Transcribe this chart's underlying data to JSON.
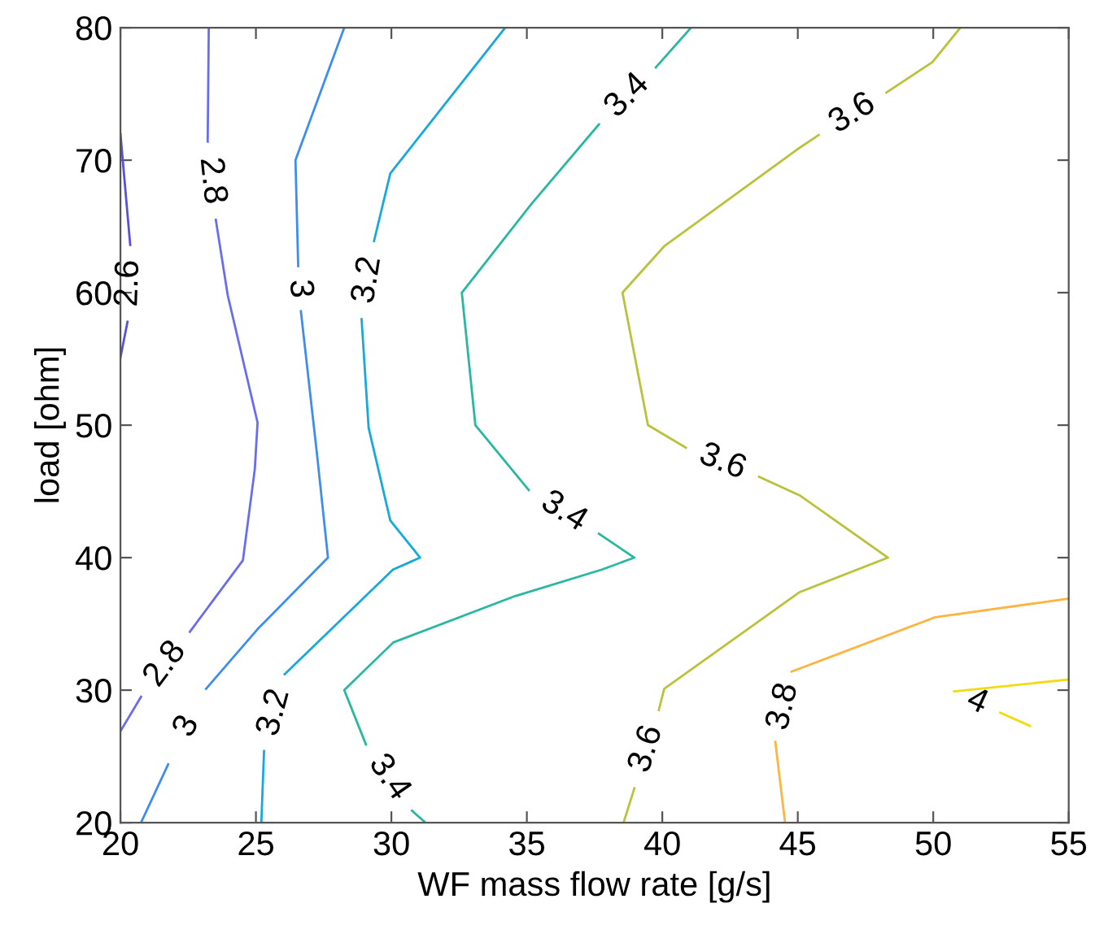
{
  "chart_data": {
    "type": "line",
    "xlabel": "WF mass flow rate [g/s]",
    "ylabel": "load [ohm]",
    "xlim": [
      20,
      55
    ],
    "xticks": [
      20,
      25,
      30,
      35,
      40,
      45,
      50,
      55
    ],
    "ylim": [
      20,
      80
    ],
    "yticks": [
      20,
      30,
      40,
      50,
      60,
      70,
      80
    ],
    "grid": false,
    "marker": "none",
    "line_style": "solid",
    "series": [
      {
        "color": "#5a4ee0",
        "x": [
          20,
          20.36,
          null,
          20.26,
          20
        ],
        "values": [
          72,
          63.6,
          null,
          57.8,
          55.1
        ]
      },
      {
        "color": "#6a6cf0",
        "x": [
          23.26,
          23.22,
          null,
          23.52,
          23.96,
          25.06,
          24.96,
          24.52,
          22.56,
          null,
          20.76,
          20
        ],
        "values": [
          80,
          71.4,
          null,
          65.5,
          59.8,
          50.2,
          46.7,
          39.8,
          34.4,
          null,
          29.5,
          26.9
        ]
      },
      {
        "color": "#3d8df0",
        "x": [
          28.26,
          26.46,
          26.56,
          null,
          26.66,
          27.26,
          27.66,
          25.06,
          23.16,
          null,
          21.76,
          20.76
        ],
        "values": [
          80,
          70,
          62,
          null,
          58.6,
          47.7,
          40,
          34.6,
          30.1,
          null,
          24.4,
          20
        ]
      },
      {
        "color": "#18a9dc",
        "x": [
          34.2,
          29.96,
          29.36,
          null,
          28.9,
          29.16,
          29.96,
          31.06,
          30.06,
          26.06,
          null,
          25.3,
          25.2
        ],
        "values": [
          80,
          69,
          63.9,
          null,
          58,
          49.8,
          42.8,
          40,
          39.1,
          31.2,
          null,
          25.4,
          20
        ]
      },
      {
        "color": "#2ab7a0",
        "x": [
          41.06,
          39.76,
          null,
          37.66,
          35.17,
          32.6,
          33.1,
          35.07,
          null,
          37.66,
          38.97,
          37.77,
          34.57,
          30.07,
          28.26,
          29.06,
          null,
          30.76,
          31.26
        ],
        "values": [
          80,
          77,
          null,
          72.7,
          66.7,
          60,
          50,
          45.1,
          null,
          41.8,
          40,
          39.1,
          37.1,
          33.6,
          30,
          25.9,
          null,
          20.9,
          20
        ]
      },
      {
        "color": "#b9c23a",
        "x": [
          51.0,
          49.97,
          48.27,
          null,
          45.77,
          44.97,
          40.07,
          38.53,
          39.47,
          40.87,
          null,
          43.57,
          45.07,
          48.33,
          45.07,
          40.07,
          39.87,
          null,
          38.97,
          38.57
        ],
        "values": [
          80,
          77.4,
          75.1,
          null,
          71.9,
          70.8,
          63.5,
          60,
          50,
          48.3,
          null,
          46.1,
          44.7,
          40,
          37.4,
          30.1,
          28.5,
          null,
          22.6,
          20
        ]
      },
      {
        "color": "#ffb440",
        "x": [
          54.97,
          50.07,
          44.77,
          null,
          44.17,
          44.53
        ],
        "values": [
          36.9,
          35.5,
          31.4,
          null,
          26.1,
          20
        ]
      },
      {
        "color": "#f2dc10",
        "x": [
          54.97,
          50.77,
          null,
          52.47,
          53.57
        ],
        "values": [
          30.8,
          29.9,
          null,
          28.3,
          27.3
        ]
      }
    ],
    "annotations": [
      "2.6",
      "2.8",
      "2.8",
      "3",
      "3",
      "3.2",
      "3.2",
      "3.4",
      "3.4",
      "3.4",
      "3.6",
      "3.6",
      "3.6",
      "3.8",
      "4"
    ]
  }
}
